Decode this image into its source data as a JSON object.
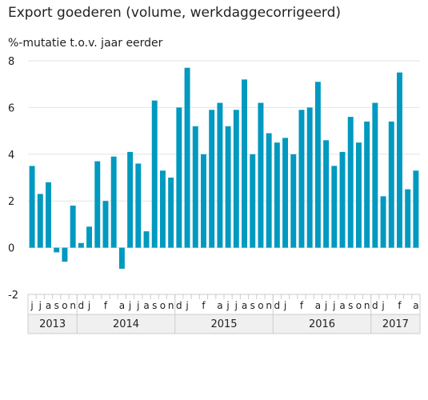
{
  "header": {
    "title": "Export goederen (volume, werkdaggecorrigeerd)",
    "subtitle": "%-mutatie t.o.v. jaar eerder"
  },
  "colors": {
    "bar": "#0099c0",
    "grid": "#e3e3e3",
    "axis_band": "#f0f0f0",
    "axis_line": "#cccccc"
  },
  "chart_data": {
    "type": "bar",
    "ylim": [
      -2,
      8
    ],
    "yticks": [
      -2,
      0,
      2,
      4,
      6,
      8
    ],
    "grid": true,
    "categories": [
      "2013-07",
      "2013-08",
      "2013-09",
      "2013-10",
      "2013-11",
      "2013-12",
      "2014-01",
      "2014-02",
      "2014-03",
      "2014-04",
      "2014-05",
      "2014-06",
      "2014-07",
      "2014-08",
      "2014-09",
      "2014-10",
      "2014-11",
      "2014-12",
      "2015-01",
      "2015-02",
      "2015-03",
      "2015-04",
      "2015-05",
      "2015-06",
      "2015-07",
      "2015-08",
      "2015-09",
      "2015-10",
      "2015-11",
      "2015-12",
      "2016-01",
      "2016-02",
      "2016-03",
      "2016-04",
      "2016-05",
      "2016-06",
      "2016-07",
      "2016-08",
      "2016-09",
      "2016-10",
      "2016-11",
      "2016-12",
      "2017-01",
      "2017-02",
      "2017-03",
      "2017-04",
      "2017-05",
      "2017-06"
    ],
    "values": [
      3.5,
      2.3,
      2.8,
      -0.2,
      -0.6,
      1.8,
      0.2,
      0.9,
      3.7,
      2.0,
      3.9,
      -0.9,
      4.1,
      3.6,
      0.7,
      6.3,
      3.3,
      3.0,
      6.0,
      7.7,
      5.2,
      4.0,
      5.9,
      6.2,
      5.2,
      5.9,
      7.2,
      4.0,
      6.2,
      4.9,
      4.5,
      4.7,
      4.0,
      5.9,
      6.0,
      7.1,
      4.6,
      3.5,
      4.1,
      5.6,
      4.5,
      5.4,
      6.2,
      2.2,
      5.4,
      7.5,
      2.5,
      3.3
    ],
    "month_labels": [
      "j",
      "j",
      "a",
      "s",
      "o",
      "n",
      "d",
      "j",
      "f",
      "",
      "",
      "a",
      "",
      "",
      "j",
      "j",
      "a",
      "s",
      "o",
      "n",
      "d",
      "j",
      "f",
      "",
      "",
      "a",
      "",
      "",
      "j",
      "j",
      "a",
      "s",
      "o",
      "n",
      "d",
      "j",
      "f",
      "",
      "",
      "a",
      "",
      "",
      "j",
      "j",
      "a",
      "s",
      "o",
      "n",
      "d",
      "j",
      "f",
      "",
      "",
      "a",
      "",
      ""
    ],
    "month_label_text": [
      "j",
      "j",
      "a",
      "s",
      "o",
      "n",
      "d",
      "j",
      "f",
      "a",
      "j",
      "j",
      "a",
      "s",
      "o",
      "n",
      "d",
      "j",
      "f",
      "a",
      "j",
      "j",
      "a",
      "s",
      "o",
      "n",
      "d",
      "j",
      "f",
      "a",
      "j",
      "j",
      "a",
      "s",
      "o",
      "n",
      "d",
      "j",
      "f",
      "a"
    ],
    "years": [
      "2013",
      "2014",
      "2015",
      "2016",
      "2017"
    ]
  }
}
